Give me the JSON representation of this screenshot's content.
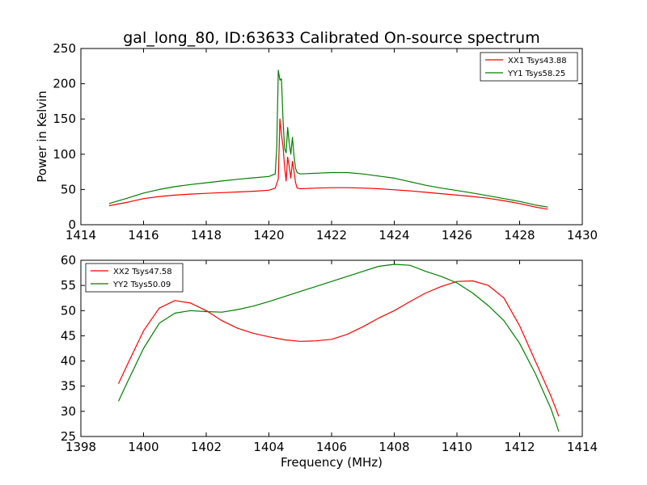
{
  "chart_data": [
    {
      "type": "line",
      "title": "gal_long_80, ID:63633 Calibrated On-source spectrum",
      "ylabel": "Power in Kelvin",
      "xlabel": "",
      "xlim": [
        1414,
        1430
      ],
      "ylim": [
        0,
        250
      ],
      "xticks": [
        "1414",
        "1416",
        "1418",
        "1420",
        "1422",
        "1424",
        "1426",
        "1428",
        "1430"
      ],
      "yticks": [
        "0",
        "50",
        "100",
        "150",
        "200",
        "250"
      ],
      "legend_position": "top-right",
      "series": [
        {
          "name": "XX1 Tsys43.88",
          "color": "#ff0000",
          "x": [
            1414.9,
            1415.5,
            1416,
            1416.5,
            1417,
            1417.5,
            1418,
            1418.5,
            1419,
            1419.5,
            1420,
            1420.2,
            1420.3,
            1420.35,
            1420.4,
            1420.45,
            1420.5,
            1420.55,
            1420.6,
            1420.65,
            1420.7,
            1420.75,
            1420.8,
            1420.85,
            1420.9,
            1421,
            1421.5,
            1422,
            1422.5,
            1423,
            1423.5,
            1424,
            1424.5,
            1425,
            1425.5,
            1426,
            1426.5,
            1427,
            1427.5,
            1428,
            1428.5,
            1428.9
          ],
          "values": [
            27,
            32,
            37,
            40,
            42,
            43.5,
            44.5,
            45.5,
            46.5,
            47.5,
            49,
            52,
            65,
            150,
            128,
            112,
            82,
            62,
            96,
            82,
            66,
            90,
            76,
            60,
            52,
            51,
            52,
            52.5,
            52.5,
            52,
            51,
            49.5,
            48,
            46,
            44,
            42,
            40,
            37.5,
            34,
            30,
            25,
            22
          ]
        },
        {
          "name": "YY1 Tsys58.25",
          "color": "#008000",
          "x": [
            1414.9,
            1415.5,
            1416,
            1416.5,
            1417,
            1417.5,
            1418,
            1418.5,
            1419,
            1419.5,
            1420,
            1420.2,
            1420.25,
            1420.3,
            1420.35,
            1420.4,
            1420.45,
            1420.5,
            1420.55,
            1420.6,
            1420.65,
            1420.7,
            1420.75,
            1420.8,
            1420.85,
            1420.9,
            1421,
            1421.5,
            1422,
            1422.5,
            1423,
            1423.5,
            1424,
            1424.5,
            1425,
            1425.5,
            1426,
            1426.5,
            1427,
            1427.5,
            1428,
            1428.5,
            1428.9
          ],
          "values": [
            30,
            38,
            45,
            50,
            54,
            57,
            59.5,
            62,
            64.5,
            66.5,
            68.5,
            72,
            110,
            219,
            205,
            207,
            150,
            108,
            102,
            138,
            115,
            100,
            124,
            98,
            80,
            74,
            72,
            73,
            74,
            74,
            72,
            69,
            66,
            61,
            56,
            52,
            48.5,
            45,
            41,
            37,
            33,
            28,
            25
          ]
        }
      ]
    },
    {
      "type": "line",
      "title": "",
      "xlabel": "Frequency (MHz)",
      "ylabel": "",
      "xlim": [
        1398,
        1414
      ],
      "ylim": [
        25,
        60
      ],
      "xticks": [
        "1398",
        "1400",
        "1402",
        "1404",
        "1406",
        "1408",
        "1410",
        "1412",
        "1414"
      ],
      "yticks": [
        "25",
        "30",
        "35",
        "40",
        "45",
        "50",
        "55",
        "60"
      ],
      "legend_position": "top-left",
      "series": [
        {
          "name": "XX2 Tsys47.58",
          "color": "#ff0000",
          "x": [
            1399.2,
            1399.5,
            1400,
            1400.5,
            1401,
            1401.5,
            1402,
            1402.5,
            1403,
            1403.5,
            1404,
            1404.5,
            1405,
            1405.5,
            1406,
            1406.5,
            1407,
            1407.5,
            1408,
            1408.5,
            1409,
            1409.5,
            1410,
            1410.5,
            1411,
            1411.5,
            1412,
            1412.5,
            1413,
            1413.25
          ],
          "values": [
            35.5,
            39.5,
            46,
            50.5,
            52,
            51.5,
            50,
            48,
            46.5,
            45.5,
            44.8,
            44.2,
            43.9,
            44,
            44.3,
            45.3,
            46.8,
            48.5,
            50,
            51.8,
            53.5,
            54.8,
            55.8,
            55.9,
            55,
            52.5,
            47,
            40,
            33,
            29
          ]
        },
        {
          "name": "YY2 Tsys50.09",
          "color": "#008000",
          "x": [
            1399.2,
            1399.5,
            1400,
            1400.5,
            1401,
            1401.5,
            1402,
            1402.5,
            1403,
            1403.5,
            1404,
            1404.5,
            1405,
            1405.5,
            1406,
            1406.5,
            1407,
            1407.5,
            1408,
            1408.5,
            1409,
            1409.5,
            1410,
            1410.5,
            1411,
            1411.5,
            1412,
            1412.5,
            1413,
            1413.25
          ],
          "values": [
            32,
            36,
            42.5,
            47.5,
            49.5,
            50,
            49.8,
            49.7,
            50.2,
            50.9,
            51.8,
            52.8,
            53.8,
            54.8,
            55.8,
            56.8,
            57.8,
            58.8,
            59.2,
            59,
            57.8,
            56.8,
            55.5,
            53.5,
            51,
            48,
            43.5,
            37.5,
            30.5,
            26
          ]
        }
      ]
    }
  ]
}
